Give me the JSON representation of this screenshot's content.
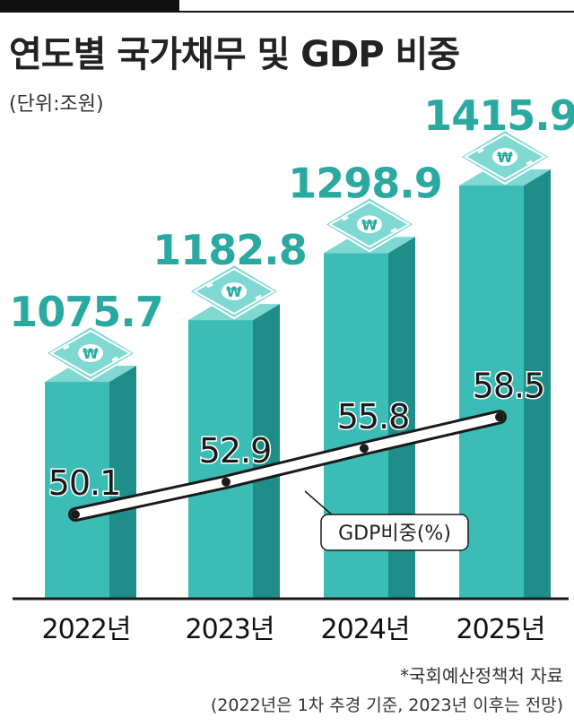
{
  "header": {
    "title": "연도별 국가채무 및 GDP 비중",
    "unit": "(단위:조원)"
  },
  "legend": {
    "gdp_label": "GDP비중(%)"
  },
  "footnote": {
    "source": "*국회예산정책처 자료",
    "note": "(2022년은 1차 추경 기준, 2023년 이후는 전망)"
  },
  "colors": {
    "bar_front": "#3bbcb4",
    "bar_side": "#1f8e88",
    "bar_top": "#7fd8d2",
    "value_text": "#2aa9a1",
    "line": "#1a1a1a"
  },
  "icons": {
    "bar_cap": "won-banknote-stack-icon"
  },
  "chart_data": {
    "type": "bar",
    "categories": [
      "2022년",
      "2023년",
      "2024년",
      "2025년"
    ],
    "series": [
      {
        "values": [
          1075.7,
          1182.8,
          1298.9,
          1415.9
        ],
        "labels": [
          "1075.7",
          "1182.8",
          "1298.9",
          "1415.9"
        ]
      },
      {
        "name": "GDP비중(%)",
        "type": "line",
        "values": [
          50.1,
          52.9,
          55.8,
          58.5
        ],
        "labels": [
          "50.1",
          "52.9",
          "55.8",
          "58.5"
        ]
      }
    ],
    "title": "연도별 국가채무 및 GDP 비중",
    "ylabel": "(단위:조원)",
    "grid": false,
    "legend": "bottom-center"
  }
}
